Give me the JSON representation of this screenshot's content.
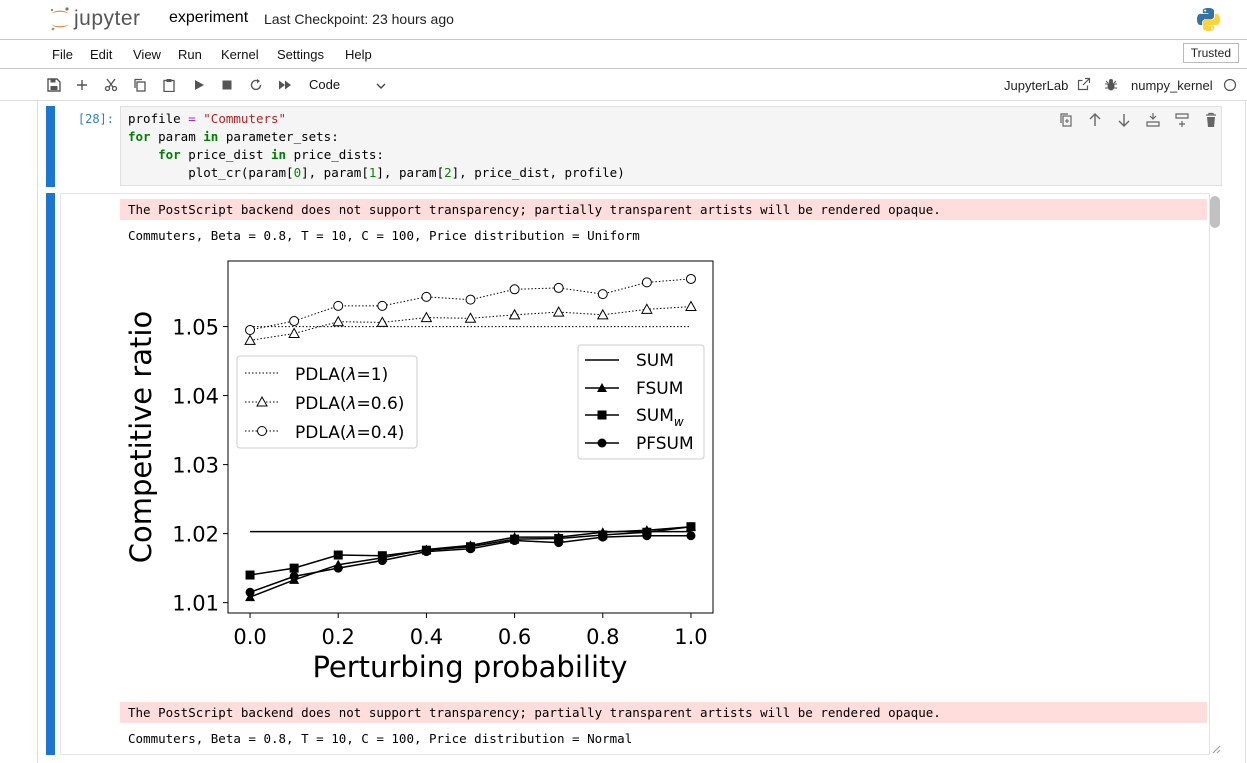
{
  "header": {
    "logo_text": "jupyter",
    "notebook_name": "experiment",
    "checkpoint": "Last Checkpoint: 23 hours ago"
  },
  "menu": [
    "File",
    "Edit",
    "View",
    "Run",
    "Kernel",
    "Settings",
    "Help"
  ],
  "trusted_label": "Trusted",
  "toolbar": {
    "cell_type": "Code",
    "jupyterlab_label": "JupyterLab",
    "kernel_name": "numpy_kernel",
    "icons": [
      "save-icon",
      "add-icon",
      "cut-icon",
      "copy-icon",
      "paste-icon",
      "run-icon",
      "stop-icon",
      "restart-icon",
      "fast-forward-icon"
    ]
  },
  "cell": {
    "prompt": "[28]:",
    "code_lines": [
      "profile = \"Commuters\"",
      "for param in parameter_sets:",
      "    for price_dist in price_dists:",
      "        plot_cr(param[0], param[1], param[2], price_dist, profile)"
    ]
  },
  "output": {
    "warning_1": "The PostScript backend does not support transparency; partially transparent artists will be rendered opaque.",
    "stdout_1": "Commuters, Beta = 0.8, T = 10, C = 100, Price distribution = Uniform",
    "warning_2": "The PostScript backend does not support transparency; partially transparent artists will be rendered opaque.",
    "stdout_2": "Commuters, Beta = 0.8, T = 10, C = 100, Price distribution = Normal"
  },
  "chart_data": {
    "type": "line",
    "title": "",
    "xlabel": "Perturbing probability",
    "ylabel": "Competitive ratio",
    "xlim": [
      -0.05,
      1.05
    ],
    "ylim": [
      1.0085,
      1.0595
    ],
    "xticks": [
      "0.0",
      "0.2",
      "0.4",
      "0.6",
      "0.8",
      "1.0"
    ],
    "yticks": [
      "1.01",
      "1.02",
      "1.03",
      "1.04",
      "1.05"
    ],
    "x": [
      0.0,
      0.1,
      0.2,
      0.3,
      0.4,
      0.5,
      0.6,
      0.7,
      0.8,
      0.9,
      1.0
    ],
    "series": [
      {
        "name": "SUM",
        "marker": "none",
        "linestyle": "solid",
        "values": [
          1.0203,
          1.0203,
          1.0203,
          1.0203,
          1.0203,
          1.0203,
          1.0203,
          1.0203,
          1.0203,
          1.0203,
          1.0203
        ]
      },
      {
        "name": "FSUM",
        "marker": "triangle",
        "linestyle": "solid",
        "values": [
          1.0108,
          1.0133,
          1.0155,
          1.0165,
          1.0177,
          1.0183,
          1.0195,
          1.0195,
          1.0202,
          1.0205,
          1.021
        ]
      },
      {
        "name": "SUMw",
        "marker": "square",
        "linestyle": "solid",
        "values": [
          1.014,
          1.015,
          1.0169,
          1.0168,
          1.0176,
          1.0181,
          1.0192,
          1.0193,
          1.0198,
          1.0202,
          1.021
        ]
      },
      {
        "name": "PFSUM",
        "marker": "circle",
        "linestyle": "solid",
        "values": [
          1.0115,
          1.0138,
          1.015,
          1.0161,
          1.0174,
          1.0178,
          1.019,
          1.0187,
          1.0195,
          1.0197,
          1.0197
        ]
      },
      {
        "name": "PDLA(λ=1)",
        "marker": "none",
        "linestyle": "dotted",
        "values": [
          1.05,
          1.05,
          1.05,
          1.05,
          1.05,
          1.05,
          1.05,
          1.05,
          1.05,
          1.05,
          1.05
        ]
      },
      {
        "name": "PDLA(λ=0.6)",
        "marker": "open-triangle",
        "linestyle": "dotted",
        "values": [
          1.048,
          1.049,
          1.0507,
          1.0506,
          1.0513,
          1.0512,
          1.0517,
          1.0521,
          1.0517,
          1.0525,
          1.0529
        ]
      },
      {
        "name": "PDLA(λ=0.4)",
        "marker": "open-circle",
        "linestyle": "dotted",
        "values": [
          1.0495,
          1.0508,
          1.053,
          1.053,
          1.0543,
          1.0539,
          1.0554,
          1.0556,
          1.0547,
          1.0564,
          1.0569
        ]
      }
    ],
    "legend_left": {
      "placement": "upper-left",
      "entries": [
        "PDLA(λ=1)",
        "PDLA(λ=0.6)",
        "PDLA(λ=0.4)"
      ]
    },
    "legend_right": {
      "placement": "upper-right",
      "entries": [
        "SUM",
        "FSUM",
        "SUMw",
        "PFSUM"
      ]
    },
    "legend_labels": {
      "sum": "SUM",
      "fsum": "FSUM",
      "sumw_base": "SUM",
      "sumw_sub": "w",
      "pfsum": "PFSUM",
      "pdla_prefix": "PDLA(",
      "lambda": "λ",
      "pdla1_suffix": "=1)",
      "pdla06_suffix": "=0.6)",
      "pdla04_suffix": "=0.4)"
    }
  }
}
